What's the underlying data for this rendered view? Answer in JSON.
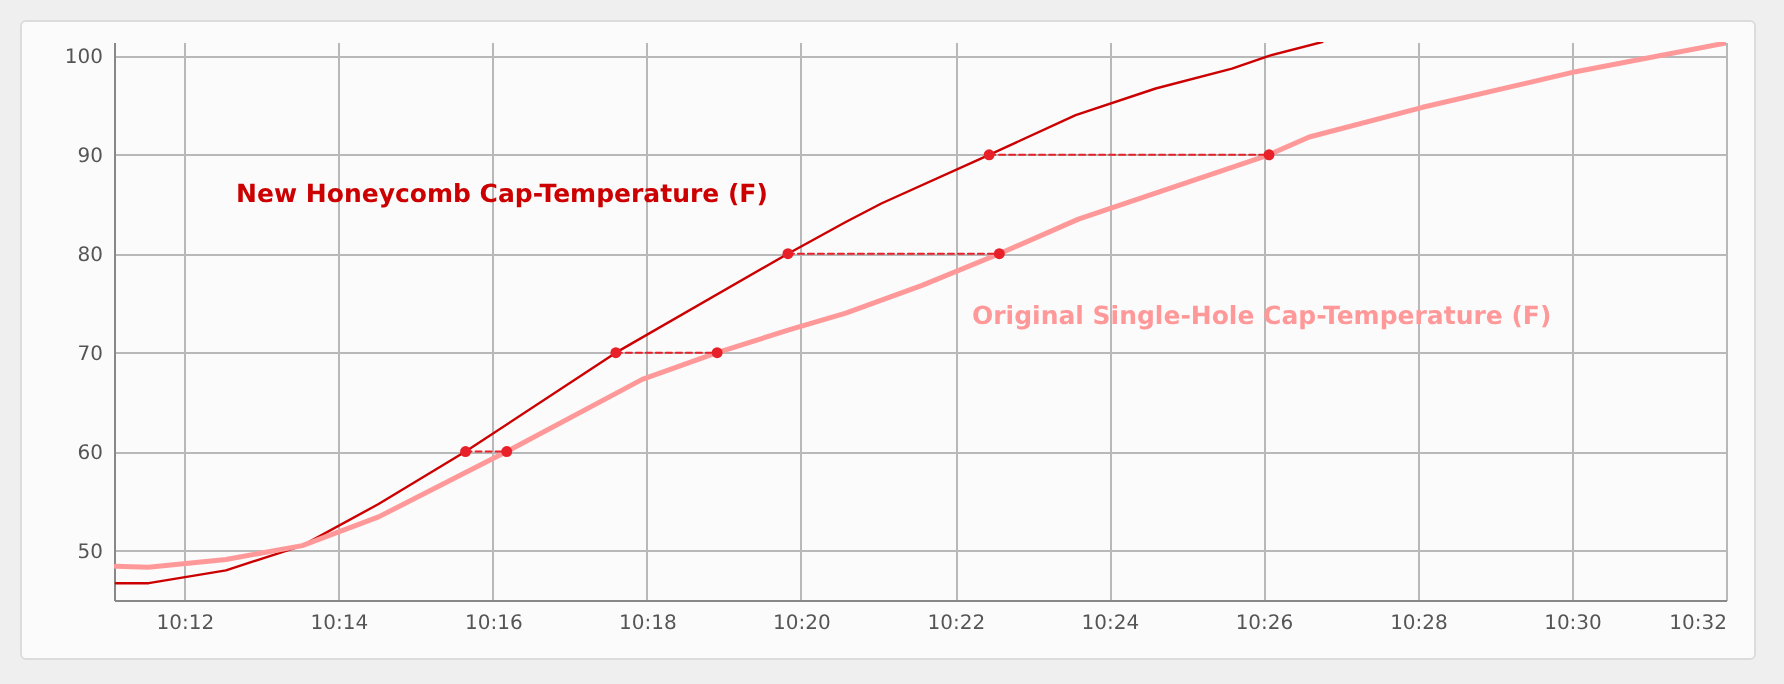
{
  "chart_data": {
    "type": "line",
    "xlim": [
      10.1848,
      10.5333
    ],
    "ylim": [
      45,
      101.4
    ],
    "xticks": [
      {
        "value": 10.2,
        "label": "10:12"
      },
      {
        "value": 10.2333,
        "label": "10:14"
      },
      {
        "value": 10.2667,
        "label": "10:16"
      },
      {
        "value": 10.3,
        "label": "10:18"
      },
      {
        "value": 10.3333,
        "label": "10:20"
      },
      {
        "value": 10.3667,
        "label": "10:22"
      },
      {
        "value": 10.4,
        "label": "10:24"
      },
      {
        "value": 10.4333,
        "label": "10:26"
      },
      {
        "value": 10.4667,
        "label": "10:28"
      },
      {
        "value": 10.5,
        "label": "10:30"
      },
      {
        "value": 10.5333,
        "label": "10:32"
      }
    ],
    "yticks": [
      50,
      60,
      70,
      80,
      90,
      100
    ],
    "grid": true,
    "series": [
      {
        "name": "New Honeycomb Cap-Temperature (F)",
        "color": "#cc0000",
        "marker": "none",
        "line_style": "solid",
        "x": [
          10.1852,
          10.1923,
          10.209,
          10.2255,
          10.242,
          10.2608,
          10.2933,
          10.3305,
          10.343,
          10.3508,
          10.374,
          10.3927,
          10.41,
          10.4265,
          10.4345,
          10.446
        ],
        "values": [
          46.7,
          46.7,
          48.0,
          50.5,
          54.7,
          60,
          70,
          80,
          83.2,
          85.1,
          90,
          94.0,
          96.7,
          98.7,
          100,
          101.4
        ]
      },
      {
        "name": "Original Single-Hole Cap-Temperature (F)",
        "color": "#ff9999",
        "marker": "none",
        "line_style": "solid",
        "x": [
          10.1852,
          10.1922,
          10.209,
          10.2255,
          10.242,
          10.2697,
          10.299,
          10.3152,
          10.3307,
          10.343,
          10.3595,
          10.3762,
          10.3933,
          10.4345,
          10.4432,
          10.4677,
          10.5008,
          10.5333
        ],
        "values": [
          48.4,
          48.3,
          49.1,
          50.5,
          53.4,
          60,
          67.3,
          70,
          72.3,
          74.0,
          76.8,
          80,
          83.5,
          90,
          91.8,
          94.8,
          98.4,
          101.3
        ]
      },
      {
        "color": "#e8202a",
        "marker": "circle",
        "line_style": "dashed",
        "x": [
          10.2608,
          10.2697
        ],
        "values": [
          60,
          60
        ]
      },
      {
        "color": "#e8202a",
        "marker": "circle",
        "line_style": "dashed",
        "x": [
          10.2933,
          10.3152
        ],
        "values": [
          70,
          70
        ]
      },
      {
        "color": "#e8202a",
        "marker": "circle",
        "line_style": "dashed",
        "x": [
          10.3305,
          10.3762
        ],
        "values": [
          80,
          80
        ]
      },
      {
        "color": "#e8202a",
        "marker": "circle",
        "line_style": "dashed",
        "x": [
          10.374,
          10.4345
        ],
        "values": [
          90,
          90
        ]
      }
    ]
  }
}
